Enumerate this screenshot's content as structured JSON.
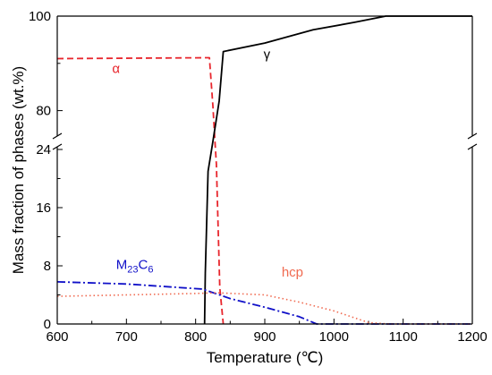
{
  "chart_data": {
    "type": "line",
    "xlabel": "Temperature (℃)",
    "ylabel": "Mass fraction of phases (wt.%)",
    "xlim": [
      600,
      1200
    ],
    "y_axis_break": {
      "lower_range": [
        0,
        24
      ],
      "upper_range": [
        75,
        100
      ]
    },
    "x_ticks": [
      "600",
      "700",
      "800",
      "900",
      "1000",
      "1100",
      "1200"
    ],
    "y_ticks_lower": [
      "0",
      "8",
      "16",
      "24"
    ],
    "y_ticks_upper": [
      "80",
      "100"
    ],
    "grid": false,
    "legend": "none",
    "series": [
      {
        "name": "α",
        "color": "#e8262d",
        "line_style": "dashed",
        "points": [
          [
            600,
            91.0
          ],
          [
            820,
            91.2
          ],
          [
            825,
            81.0
          ],
          [
            828,
            24.5
          ],
          [
            830,
            22.0
          ],
          [
            835,
            5.0
          ],
          [
            840,
            0
          ]
        ]
      },
      {
        "name": "γ",
        "color": "#000000",
        "line_style": "solid",
        "points": [
          [
            813,
            0
          ],
          [
            814,
            7.0
          ],
          [
            818,
            21.0
          ],
          [
            825,
            24.5
          ],
          [
            834,
            82.0
          ],
          [
            840,
            92.5
          ],
          [
            900,
            94.3
          ],
          [
            970,
            97.1
          ],
          [
            1030,
            98.7
          ],
          [
            1075,
            100
          ],
          [
            1200,
            100
          ]
        ]
      },
      {
        "name": "M23C6",
        "color": "#1010c8",
        "line_style": "dash-dot",
        "points": [
          [
            600,
            5.8
          ],
          [
            700,
            5.5
          ],
          [
            810,
            4.8
          ],
          [
            850,
            3.5
          ],
          [
            900,
            2.3
          ],
          [
            950,
            1.0
          ],
          [
            975,
            0
          ],
          [
            1200,
            0
          ]
        ]
      },
      {
        "name": "hcp",
        "color": "#f06a50",
        "line_style": "dotted",
        "points": [
          [
            600,
            3.8
          ],
          [
            700,
            4.0
          ],
          [
            800,
            4.2
          ],
          [
            830,
            4.3
          ],
          [
            900,
            4.0
          ],
          [
            950,
            3.0
          ],
          [
            1000,
            1.8
          ],
          [
            1050,
            0.2
          ],
          [
            1080,
            0
          ],
          [
            1200,
            0
          ]
        ]
      }
    ],
    "annotations": [
      {
        "text": "α",
        "x": 685,
        "y": 88.0,
        "color": "#e8262d"
      },
      {
        "text": "γ",
        "x": 903,
        "y": 91.0,
        "color": "#000000"
      },
      {
        "text": "hcp",
        "x": 940,
        "y": 6.5,
        "color": "#f06a50"
      }
    ],
    "m23c6_label": {
      "base": "M",
      "sub1": "23",
      "mid": "C",
      "sub2": "6",
      "x": 712,
      "y": 7.6,
      "color": "#1010c8"
    }
  }
}
